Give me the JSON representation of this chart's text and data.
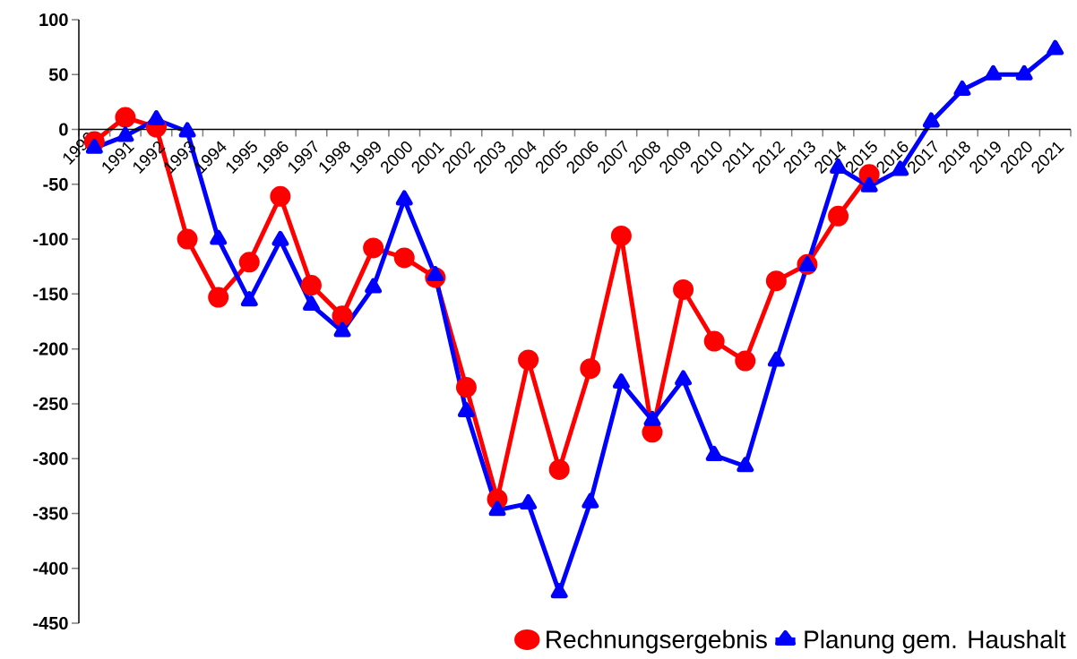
{
  "chart_data": {
    "type": "line",
    "categories": [
      "1990",
      "1991",
      "1992",
      "1993",
      "1994",
      "1995",
      "1996",
      "1997",
      "1998",
      "1999",
      "2000",
      "2001",
      "2002",
      "2003",
      "2004",
      "2005",
      "2006",
      "2007",
      "2008",
      "2009",
      "2010",
      "2011",
      "2012",
      "2013",
      "2014",
      "2015",
      "2016",
      "2017",
      "2018",
      "2019",
      "2020",
      "2021"
    ],
    "series": [
      {
        "name": "Rechnungsergebnis",
        "color": "#ff0000",
        "marker": "circle",
        "values": [
          -11,
          11,
          2,
          -100,
          -153,
          -121,
          -61,
          -142,
          -170,
          -108,
          -117,
          -135,
          -235,
          -337,
          -210,
          -310,
          -218,
          -97,
          -276,
          -146,
          -193,
          -211,
          -138,
          -123,
          -79,
          -41,
          null,
          null,
          null,
          null,
          null,
          null
        ]
      },
      {
        "name": "Planung gem. Haushalt",
        "color": "#0000ff",
        "marker": "triangle",
        "values": [
          -17,
          -6,
          9,
          -2,
          -100,
          -156,
          -101,
          -160,
          -184,
          -144,
          -64,
          -133,
          -257,
          -347,
          -341,
          -422,
          -340,
          -231,
          -265,
          -228,
          -297,
          -307,
          -211,
          -124,
          -35,
          -52,
          -37,
          7,
          36,
          50,
          50,
          73
        ]
      }
    ],
    "ylim": [
      -450,
      100
    ],
    "yticks": [
      -450,
      -400,
      -350,
      -300,
      -250,
      -200,
      -150,
      -100,
      -50,
      0,
      50,
      100
    ],
    "legend": "bottom right"
  }
}
